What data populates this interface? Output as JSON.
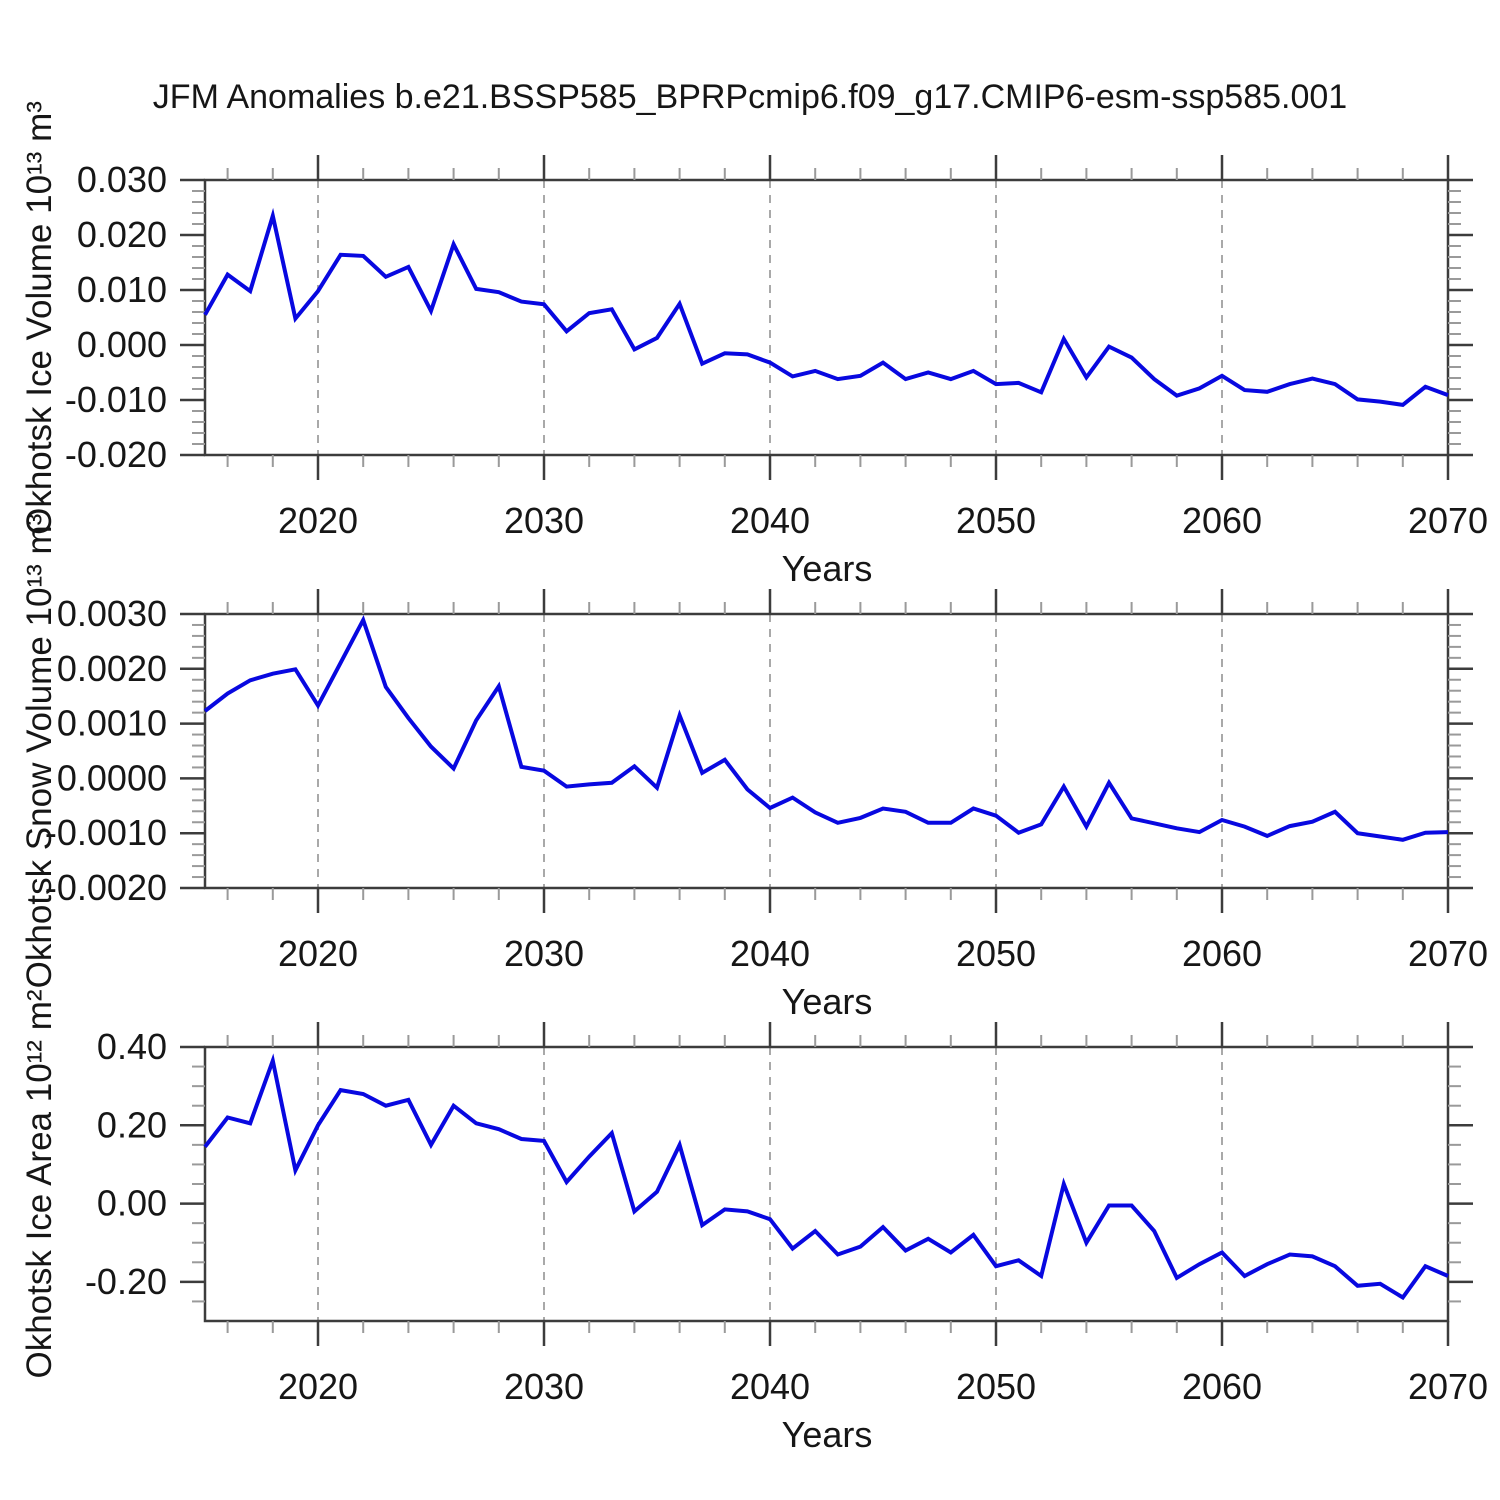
{
  "title": "JFM Anomalies b.e21.BSSP585_BPRPcmip6.f09_g17.CMIP6-esm-ssp585.001",
  "line_color": "#0808e0",
  "grid_color": "#a9a9a9",
  "years": [
    2015,
    2016,
    2017,
    2018,
    2019,
    2020,
    2021,
    2022,
    2023,
    2024,
    2025,
    2026,
    2027,
    2028,
    2029,
    2030,
    2031,
    2032,
    2033,
    2034,
    2035,
    2036,
    2037,
    2038,
    2039,
    2040,
    2041,
    2042,
    2043,
    2044,
    2045,
    2046,
    2047,
    2048,
    2049,
    2050,
    2051,
    2052,
    2053,
    2054,
    2055,
    2056,
    2057,
    2058,
    2059,
    2060,
    2061,
    2062,
    2063,
    2064,
    2065,
    2066,
    2067,
    2068,
    2069,
    2070
  ],
  "chart_data": [
    {
      "type": "line",
      "title": "JFM Anomalies b.e21.BSSP585_BPRPcmip6.f09_g17.CMIP6-esm-ssp585.001",
      "ylabel": "Okhotsk Ice Volume 10¹³ m³",
      "xlabel": "Years",
      "ylim": [
        -0.02,
        0.03
      ],
      "xlim": [
        2015,
        2070
      ],
      "ytick_values": [
        0.03,
        0.02,
        0.01,
        0.0,
        -0.01,
        -0.02
      ],
      "ytick_labels": [
        "0.030",
        "0.020",
        "0.010",
        "0.000",
        "-0.010",
        "-0.020"
      ],
      "ytick_minor_step": 0.002,
      "xticks": [
        2020,
        2030,
        2040,
        2050,
        2060,
        2070
      ],
      "xtick_minor_step": 2,
      "grid_years": [
        2020,
        2030,
        2040,
        2050,
        2060
      ],
      "grid": "vertical-dashed",
      "legend": "none",
      "values": [
        0.0055,
        0.0128,
        0.0098,
        0.0235,
        0.0048,
        0.0098,
        0.0164,
        0.0162,
        0.0124,
        0.0142,
        0.0062,
        0.0183,
        0.0102,
        0.0096,
        0.0079,
        0.0074,
        0.0025,
        0.0058,
        0.0065,
        -0.0008,
        0.0013,
        0.0075,
        -0.0034,
        -0.0015,
        -0.0017,
        -0.0032,
        -0.0057,
        -0.0047,
        -0.0062,
        -0.0056,
        -0.0032,
        -0.0062,
        -0.005,
        -0.0062,
        -0.0047,
        -0.0071,
        -0.0069,
        -0.0086,
        0.0011,
        -0.0059,
        -0.0003,
        -0.0023,
        -0.0062,
        -0.0092,
        -0.0079,
        -0.0056,
        -0.0082,
        -0.0085,
        -0.0071,
        -0.0061,
        -0.0071,
        -0.0099,
        -0.0103,
        -0.0109,
        -0.0076,
        -0.0091
      ]
    },
    {
      "type": "line",
      "ylabel": "Okhotsk Snow Volume 10¹³ m³",
      "xlabel": "Years",
      "ylim": [
        -0.002,
        0.003
      ],
      "xlim": [
        2015,
        2070
      ],
      "ytick_values": [
        0.003,
        0.002,
        0.001,
        0.0,
        -0.001,
        -0.002
      ],
      "ytick_labels": [
        "0.0030",
        "0.0020",
        "0.0010",
        "0.0000",
        "-0.0010",
        "-0.0020"
      ],
      "ytick_minor_step": 0.0002,
      "xticks": [
        2020,
        2030,
        2040,
        2050,
        2060,
        2070
      ],
      "xtick_minor_step": 2,
      "grid_years": [
        2020,
        2030,
        2040,
        2050,
        2060
      ],
      "grid": "vertical-dashed",
      "legend": "none",
      "values": [
        0.00123,
        0.00155,
        0.00179,
        0.00191,
        0.00199,
        0.00133,
        0.00211,
        0.00289,
        0.00167,
        0.0011,
        0.00058,
        0.00018,
        0.00106,
        0.00168,
        0.00021,
        0.00014,
        -0.00015,
        -0.00011,
        -8e-05,
        0.00022,
        -0.00017,
        0.00115,
        0.0001,
        0.00034,
        -0.0002,
        -0.00054,
        -0.00035,
        -0.00062,
        -0.00081,
        -0.00072,
        -0.00055,
        -0.00061,
        -0.00081,
        -0.00081,
        -0.00055,
        -0.00068,
        -0.00099,
        -0.00084,
        -0.00015,
        -0.00088,
        -8e-05,
        -0.00073,
        -0.00082,
        -0.00091,
        -0.00098,
        -0.00076,
        -0.00088,
        -0.00105,
        -0.00087,
        -0.00079,
        -0.00061,
        -0.001,
        -0.00106,
        -0.00112,
        -0.00099,
        -0.00098
      ]
    },
    {
      "type": "line",
      "ylabel": "Okhotsk Ice Area 10¹² m²",
      "xlabel": "Years",
      "ylim": [
        -0.3,
        0.4
      ],
      "xlim": [
        2015,
        2070
      ],
      "ytick_values": [
        0.4,
        0.2,
        0.0,
        -0.2
      ],
      "ytick_labels": [
        "0.40",
        "0.20",
        "0.00",
        "-0.20"
      ],
      "ytick_minor_step": 0.05,
      "xticks": [
        2020,
        2030,
        2040,
        2050,
        2060,
        2070
      ],
      "xtick_minor_step": 2,
      "grid_years": [
        2020,
        2030,
        2040,
        2050,
        2060
      ],
      "grid": "vertical-dashed",
      "legend": "none",
      "values": [
        0.145,
        0.22,
        0.205,
        0.365,
        0.085,
        0.2,
        0.29,
        0.28,
        0.25,
        0.265,
        0.15,
        0.25,
        0.205,
        0.19,
        0.165,
        0.16,
        0.055,
        0.12,
        0.18,
        -0.02,
        0.03,
        0.15,
        -0.055,
        -0.015,
        -0.02,
        -0.04,
        -0.115,
        -0.07,
        -0.13,
        -0.11,
        -0.06,
        -0.12,
        -0.09,
        -0.125,
        -0.08,
        -0.16,
        -0.145,
        -0.185,
        0.05,
        -0.1,
        -0.005,
        -0.005,
        -0.07,
        -0.19,
        -0.155,
        -0.125,
        -0.185,
        -0.155,
        -0.13,
        -0.135,
        -0.16,
        -0.21,
        -0.205,
        -0.24,
        -0.16,
        -0.185
      ]
    }
  ]
}
